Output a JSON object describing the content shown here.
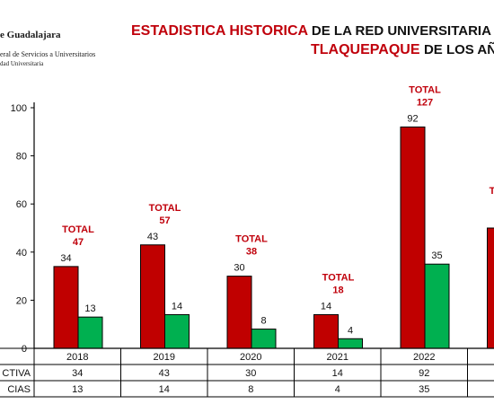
{
  "header": {
    "org_name": "e Guadalajara",
    "sub_line1": "eral de Servicios a Universitarios",
    "sub_line2": "dad Universitaria",
    "title_line1_red": "ESTADISTICA HISTORICA",
    "title_line1_black": "DE LA RED UNIVERSITARIA EN",
    "title_line2_red": "TLAQUEPAQUE",
    "title_line2_black": "DE LOS AÑ"
  },
  "colors": {
    "series_a": "#c00000",
    "series_b": "#00b050",
    "title_red": "#c0000b"
  },
  "chart_data": {
    "type": "bar",
    "categories": [
      "2018",
      "2019",
      "2020",
      "2021",
      "2022",
      ""
    ],
    "series": [
      {
        "name": "CTIVA",
        "values": [
          34,
          43,
          30,
          14,
          92,
          50
        ]
      },
      {
        "name": "CIAS",
        "values": [
          13,
          14,
          8,
          4,
          35,
          null
        ]
      }
    ],
    "totals": [
      47,
      57,
      38,
      18,
      127,
      null
    ],
    "total_label": "TOTAL",
    "yticks": [
      0,
      20,
      40,
      60,
      80,
      100
    ],
    "ylim": [
      0,
      100
    ],
    "title": "",
    "xlabel": "",
    "ylabel": "",
    "table": {
      "rows": [
        {
          "label": "CTIVA",
          "values": [
            "34",
            "43",
            "30",
            "14",
            "92",
            ""
          ]
        },
        {
          "label": "CIAS",
          "values": [
            "13",
            "14",
            "8",
            "4",
            "35",
            ""
          ]
        }
      ]
    }
  }
}
